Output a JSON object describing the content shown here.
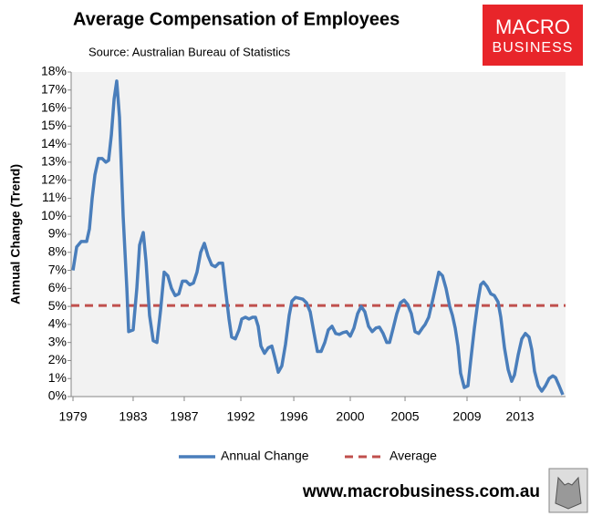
{
  "chart_data": {
    "type": "line",
    "title": "Average Compensation of Employees",
    "subtitle": "Source: Australian Bureau of Statistics",
    "ylabel": "Annual Change (Trend)",
    "footer": "www.macrobusiness.com.au",
    "logo": {
      "line1": "MACRO",
      "line2": "BUSINESS",
      "color": "#e8252a"
    },
    "xlim": [
      1978.86,
      2016.5
    ],
    "xticks": [
      {
        "value": 1979.0,
        "label": "1979"
      },
      {
        "value": 1983.58,
        "label": "1983"
      },
      {
        "value": 1987.47,
        "label": "1987"
      },
      {
        "value": 1991.78,
        "label": "1992"
      },
      {
        "value": 1995.81,
        "label": "1996"
      },
      {
        "value": 2000.11,
        "label": "2000"
      },
      {
        "value": 2004.28,
        "label": "2005"
      },
      {
        "value": 2009.0,
        "label": "2009"
      },
      {
        "value": 2013.03,
        "label": "2013"
      }
    ],
    "ylim": [
      0,
      18
    ],
    "yticks": [
      {
        "value": 0,
        "label": "0%"
      },
      {
        "value": 1,
        "label": "1%"
      },
      {
        "value": 2,
        "label": "2%"
      },
      {
        "value": 3,
        "label": "3%"
      },
      {
        "value": 4,
        "label": "4%"
      },
      {
        "value": 5,
        "label": "5%"
      },
      {
        "value": 6,
        "label": "6%"
      },
      {
        "value": 7,
        "label": "7%"
      },
      {
        "value": 8,
        "label": "8%"
      },
      {
        "value": 9,
        "label": "9%"
      },
      {
        "value": 10,
        "label": "10%"
      },
      {
        "value": 11,
        "label": "11%"
      },
      {
        "value": 12,
        "label": "12%"
      },
      {
        "value": 13,
        "label": "13%"
      },
      {
        "value": 14,
        "label": "14%"
      },
      {
        "value": 15,
        "label": "15%"
      },
      {
        "value": 16,
        "label": "16%"
      },
      {
        "value": 17,
        "label": "17%"
      },
      {
        "value": 18,
        "label": "18%"
      }
    ],
    "grid": false,
    "series": [
      {
        "name": "Annual Change",
        "color": "#4a7ebb",
        "x": [
          1979.0,
          1979.28,
          1979.63,
          1980.04,
          1980.25,
          1980.46,
          1980.67,
          1980.94,
          1981.22,
          1981.5,
          1981.71,
          1981.92,
          1982.13,
          1982.33,
          1982.54,
          1982.82,
          1983.1,
          1983.24,
          1983.58,
          1983.86,
          1984.07,
          1984.35,
          1984.56,
          1984.83,
          1985.11,
          1985.39,
          1985.67,
          1985.94,
          1986.22,
          1986.5,
          1986.78,
          1987.06,
          1987.33,
          1987.61,
          1987.89,
          1988.17,
          1988.44,
          1988.72,
          1989.0,
          1989.28,
          1989.56,
          1989.83,
          1990.11,
          1990.39,
          1990.6,
          1990.88,
          1991.08,
          1991.36,
          1991.64,
          1991.85,
          1992.13,
          1992.4,
          1992.68,
          1992.89,
          1993.1,
          1993.31,
          1993.58,
          1993.86,
          1994.14,
          1994.35,
          1994.63,
          1994.9,
          1995.18,
          1995.46,
          1995.67,
          1995.94,
          1996.22,
          1996.5,
          1996.78,
          1997.06,
          1997.33,
          1997.61,
          1997.89,
          1998.17,
          1998.44,
          1998.72,
          1999.0,
          1999.28,
          1999.56,
          1999.83,
          2000.11,
          2000.39,
          2000.67,
          2000.94,
          2001.22,
          2001.5,
          2001.78,
          2002.06,
          2002.33,
          2002.61,
          2002.89,
          2003.1,
          2003.38,
          2003.65,
          2003.93,
          2004.21,
          2004.49,
          2004.76,
          2005.04,
          2005.32,
          2005.6,
          2005.81,
          2006.08,
          2006.43,
          2006.85,
          2007.13,
          2007.4,
          2007.68,
          2007.89,
          2008.1,
          2008.31,
          2008.51,
          2008.79,
          2009.07,
          2009.28,
          2009.56,
          2009.83,
          2010.04,
          2010.25,
          2010.53,
          2010.81,
          2011.08,
          2011.36,
          2011.57,
          2011.85,
          2012.13,
          2012.4,
          2012.61,
          2012.89,
          2013.17,
          2013.44,
          2013.72,
          2013.93,
          2014.14,
          2014.42,
          2014.69,
          2014.97,
          2015.25,
          2015.53,
          2015.74,
          2016.01,
          2016.29
        ],
        "values": [
          7.0,
          8.3,
          8.6,
          8.6,
          9.3,
          11.0,
          12.3,
          13.2,
          13.2,
          13.0,
          13.1,
          14.5,
          16.5,
          17.5,
          15.5,
          10.0,
          6.0,
          3.6,
          3.7,
          6.0,
          8.4,
          9.1,
          7.5,
          4.5,
          3.1,
          3.0,
          4.8,
          6.9,
          6.7,
          6.0,
          5.6,
          5.7,
          6.4,
          6.4,
          6.2,
          6.3,
          6.9,
          8.0,
          8.5,
          7.8,
          7.3,
          7.2,
          7.4,
          7.4,
          6.0,
          4.3,
          3.3,
          3.2,
          3.7,
          4.3,
          4.4,
          4.3,
          4.4,
          4.4,
          3.9,
          2.8,
          2.4,
          2.7,
          2.8,
          2.2,
          1.35,
          1.7,
          2.9,
          4.5,
          5.3,
          5.5,
          5.45,
          5.4,
          5.2,
          4.7,
          3.6,
          2.5,
          2.5,
          3.0,
          3.7,
          3.9,
          3.5,
          3.45,
          3.55,
          3.6,
          3.35,
          3.8,
          4.6,
          5.0,
          4.7,
          3.9,
          3.6,
          3.8,
          3.85,
          3.5,
          3.0,
          3.0,
          3.8,
          4.6,
          5.2,
          5.35,
          5.1,
          4.6,
          3.6,
          3.5,
          3.8,
          4.0,
          4.4,
          5.5,
          6.9,
          6.7,
          6.0,
          5.0,
          4.5,
          3.8,
          2.8,
          1.3,
          0.5,
          0.6,
          2.0,
          3.8,
          5.3,
          6.2,
          6.35,
          6.1,
          5.7,
          5.6,
          5.25,
          4.4,
          2.7,
          1.5,
          0.85,
          1.2,
          2.3,
          3.2,
          3.5,
          3.3,
          2.6,
          1.4,
          0.6,
          0.3,
          0.6,
          1.0,
          1.15,
          1.05,
          0.6,
          0.1
        ]
      }
    ],
    "reference_line": {
      "name": "Average",
      "value": 5.05,
      "color": "#c0504d",
      "style": "dashed"
    }
  }
}
